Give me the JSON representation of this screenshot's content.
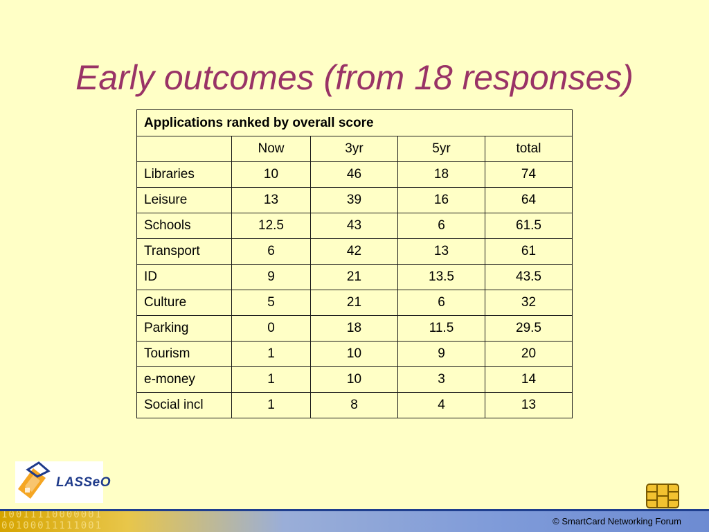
{
  "slide": {
    "title": "Early outcomes (from 18 responses)"
  },
  "table": {
    "caption": "Applications ranked by overall score",
    "headers": [
      "",
      "Now",
      "3yr",
      "5yr",
      "total"
    ],
    "rows": [
      {
        "name": "Libraries",
        "now": "10",
        "y3": "46",
        "y5": "18",
        "total": "74"
      },
      {
        "name": "Leisure",
        "now": "13",
        "y3": "39",
        "y5": "16",
        "total": "64"
      },
      {
        "name": "Schools",
        "now": "12.5",
        "y3": "43",
        "y5": "6",
        "total": "61.5"
      },
      {
        "name": "Transport",
        "now": "6",
        "y3": "42",
        "y5": "13",
        "total": "61"
      },
      {
        "name": "ID",
        "now": "9",
        "y3": "21",
        "y5": "13.5",
        "total": "43.5"
      },
      {
        "name": "Culture",
        "now": "5",
        "y3": "21",
        "y5": "6",
        "total": "32"
      },
      {
        "name": "Parking",
        "now": "0",
        "y3": "18",
        "y5": "11.5",
        "total": "29.5"
      },
      {
        "name": "Tourism",
        "now": "1",
        "y3": "10",
        "y5": "9",
        "total": "20"
      },
      {
        "name": "e-money",
        "now": "1",
        "y3": "10",
        "y5": "3",
        "total": "14"
      },
      {
        "name": "Social incl",
        "now": "1",
        "y3": "8",
        "y5": "4",
        "total": "13"
      }
    ]
  },
  "logo": {
    "text": "LASSeO",
    "icon": "lasseo-logo-icon"
  },
  "footer": {
    "text": "© SmartCard Networking Forum",
    "binary_line1": "10011110000001",
    "binary_line2": "00100011111001",
    "chip_icon": "smartcard-chip-icon"
  },
  "colors": {
    "background": "#ffffc6",
    "title": "#993366",
    "footer_line": "#1f3f8f"
  }
}
